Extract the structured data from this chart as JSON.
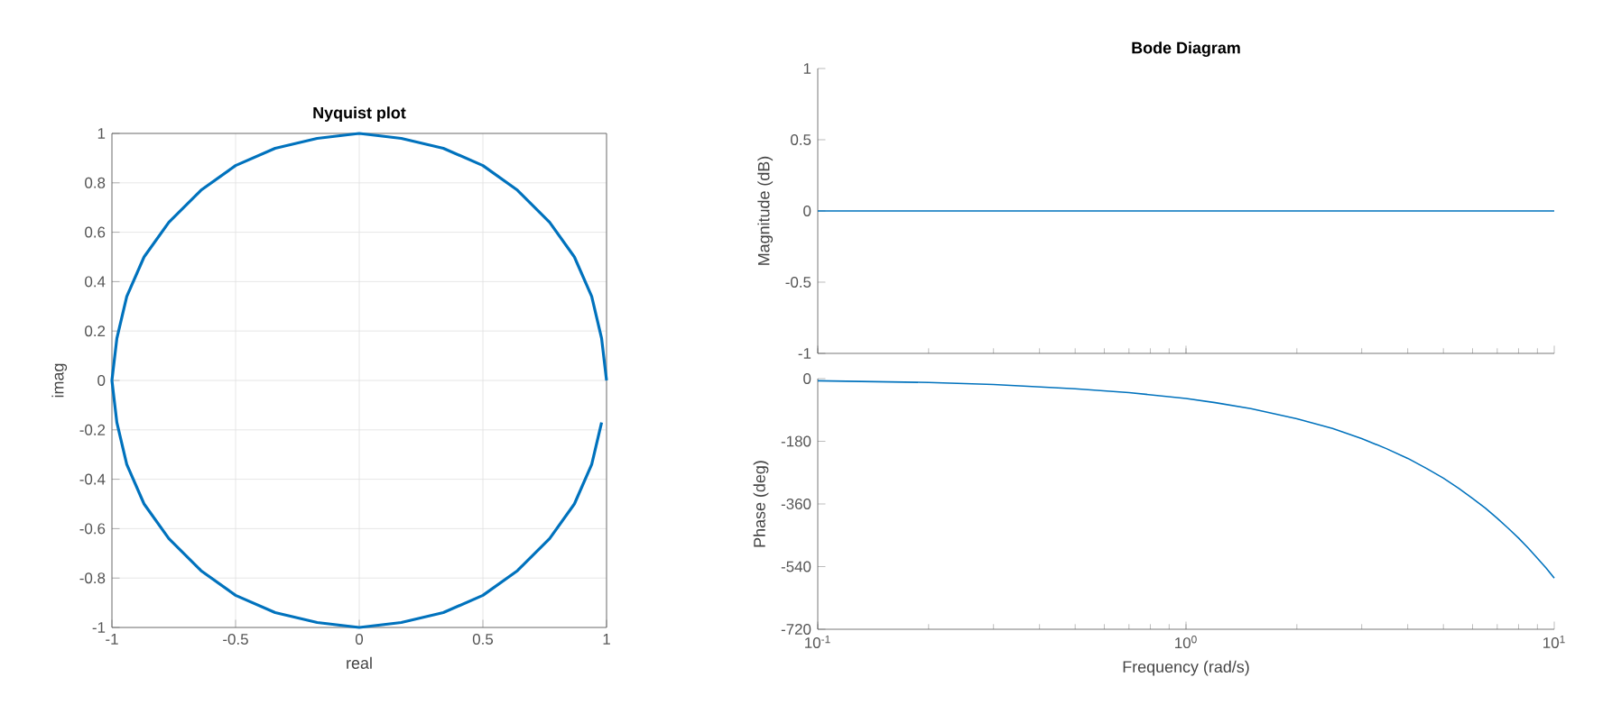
{
  "chart_data": [
    {
      "type": "line",
      "title": "Nyquist plot",
      "xlabel": "real",
      "ylabel": "imag",
      "xlim": [
        -1,
        1
      ],
      "ylim": [
        -1,
        1
      ],
      "xticks": [
        -1,
        -0.5,
        0,
        0.5,
        1
      ],
      "yticks": [
        -1,
        -0.8,
        -0.6,
        -0.4,
        -0.2,
        0,
        0.2,
        0.4,
        0.6,
        0.8,
        1
      ],
      "grid": true,
      "series": [
        {
          "color": "#0072bd",
          "x": [
            1,
            0.98,
            0.94,
            0.87,
            0.77,
            0.64,
            0.5,
            0.34,
            0.17,
            0,
            -0.17,
            -0.34,
            -0.5,
            -0.64,
            -0.77,
            -0.87,
            -0.94,
            -0.98,
            -1,
            -0.98,
            -0.94,
            -0.87,
            -0.77,
            -0.64,
            -0.5,
            -0.34,
            -0.17,
            0,
            0.17,
            0.34,
            0.5,
            0.64,
            0.77,
            0.87,
            0.94,
            0.98
          ],
          "values": [
            0,
            0.17,
            0.34,
            0.5,
            0.64,
            0.77,
            0.87,
            0.94,
            0.98,
            1,
            0.98,
            0.94,
            0.87,
            0.77,
            0.64,
            0.5,
            0.34,
            0.17,
            0,
            -0.17,
            -0.34,
            -0.5,
            -0.64,
            -0.77,
            -0.87,
            -0.94,
            -0.98,
            -1,
            -0.98,
            -0.94,
            -0.87,
            -0.77,
            -0.64,
            -0.5,
            -0.34,
            -0.17
          ]
        }
      ]
    },
    {
      "type": "line",
      "title": "Bode Diagram",
      "ylabel": "Magnitude (dB)",
      "log": "x",
      "xlim": [
        0.1,
        10
      ],
      "xticks": [
        {
          "value": 0.1,
          "label": null
        },
        {
          "value": 1,
          "label": null
        },
        {
          "value": 10,
          "label": null
        }
      ],
      "ylim": [
        -1,
        1
      ],
      "yticks": [
        -1,
        -0.5,
        0,
        0.5,
        1
      ],
      "tick_labels": "y",
      "series": [
        {
          "color": "#0072bd",
          "x": [
            0.1,
            10
          ],
          "values": [
            0,
            0
          ]
        }
      ]
    },
    {
      "type": "line",
      "xlabel": "Frequency  (rad/s)",
      "ylabel": "Phase (deg)",
      "log": "x",
      "xlim": [
        0.1,
        10
      ],
      "xticks": [
        {
          "value": 0.1,
          "label": "10$^{-1}$"
        },
        {
          "value": 1,
          "label": "10$^{0}$"
        },
        {
          "value": 10,
          "label": "10$^{1}$"
        }
      ],
      "ylim": [
        -720,
        0
      ],
      "yticks": [
        -720,
        -540,
        -360,
        -180,
        0
      ],
      "series": [
        {
          "color": "#0072bd",
          "x": [
            0.1,
            0.2,
            0.3,
            0.5,
            0.7,
            1,
            1.2,
            1.5,
            2,
            2.5,
            3,
            3.5,
            4,
            4.5,
            5,
            5.5,
            6,
            6.5,
            7,
            7.5,
            8,
            8.5,
            9,
            9.5,
            10
          ],
          "values": [
            -6,
            -11,
            -17,
            -29,
            -40,
            -57,
            -69,
            -86,
            -115,
            -143,
            -172,
            -201,
            -229,
            -258,
            -286,
            -315,
            -344,
            -372,
            -401,
            -430,
            -458,
            -487,
            -516,
            -544,
            -573
          ]
        }
      ]
    }
  ]
}
